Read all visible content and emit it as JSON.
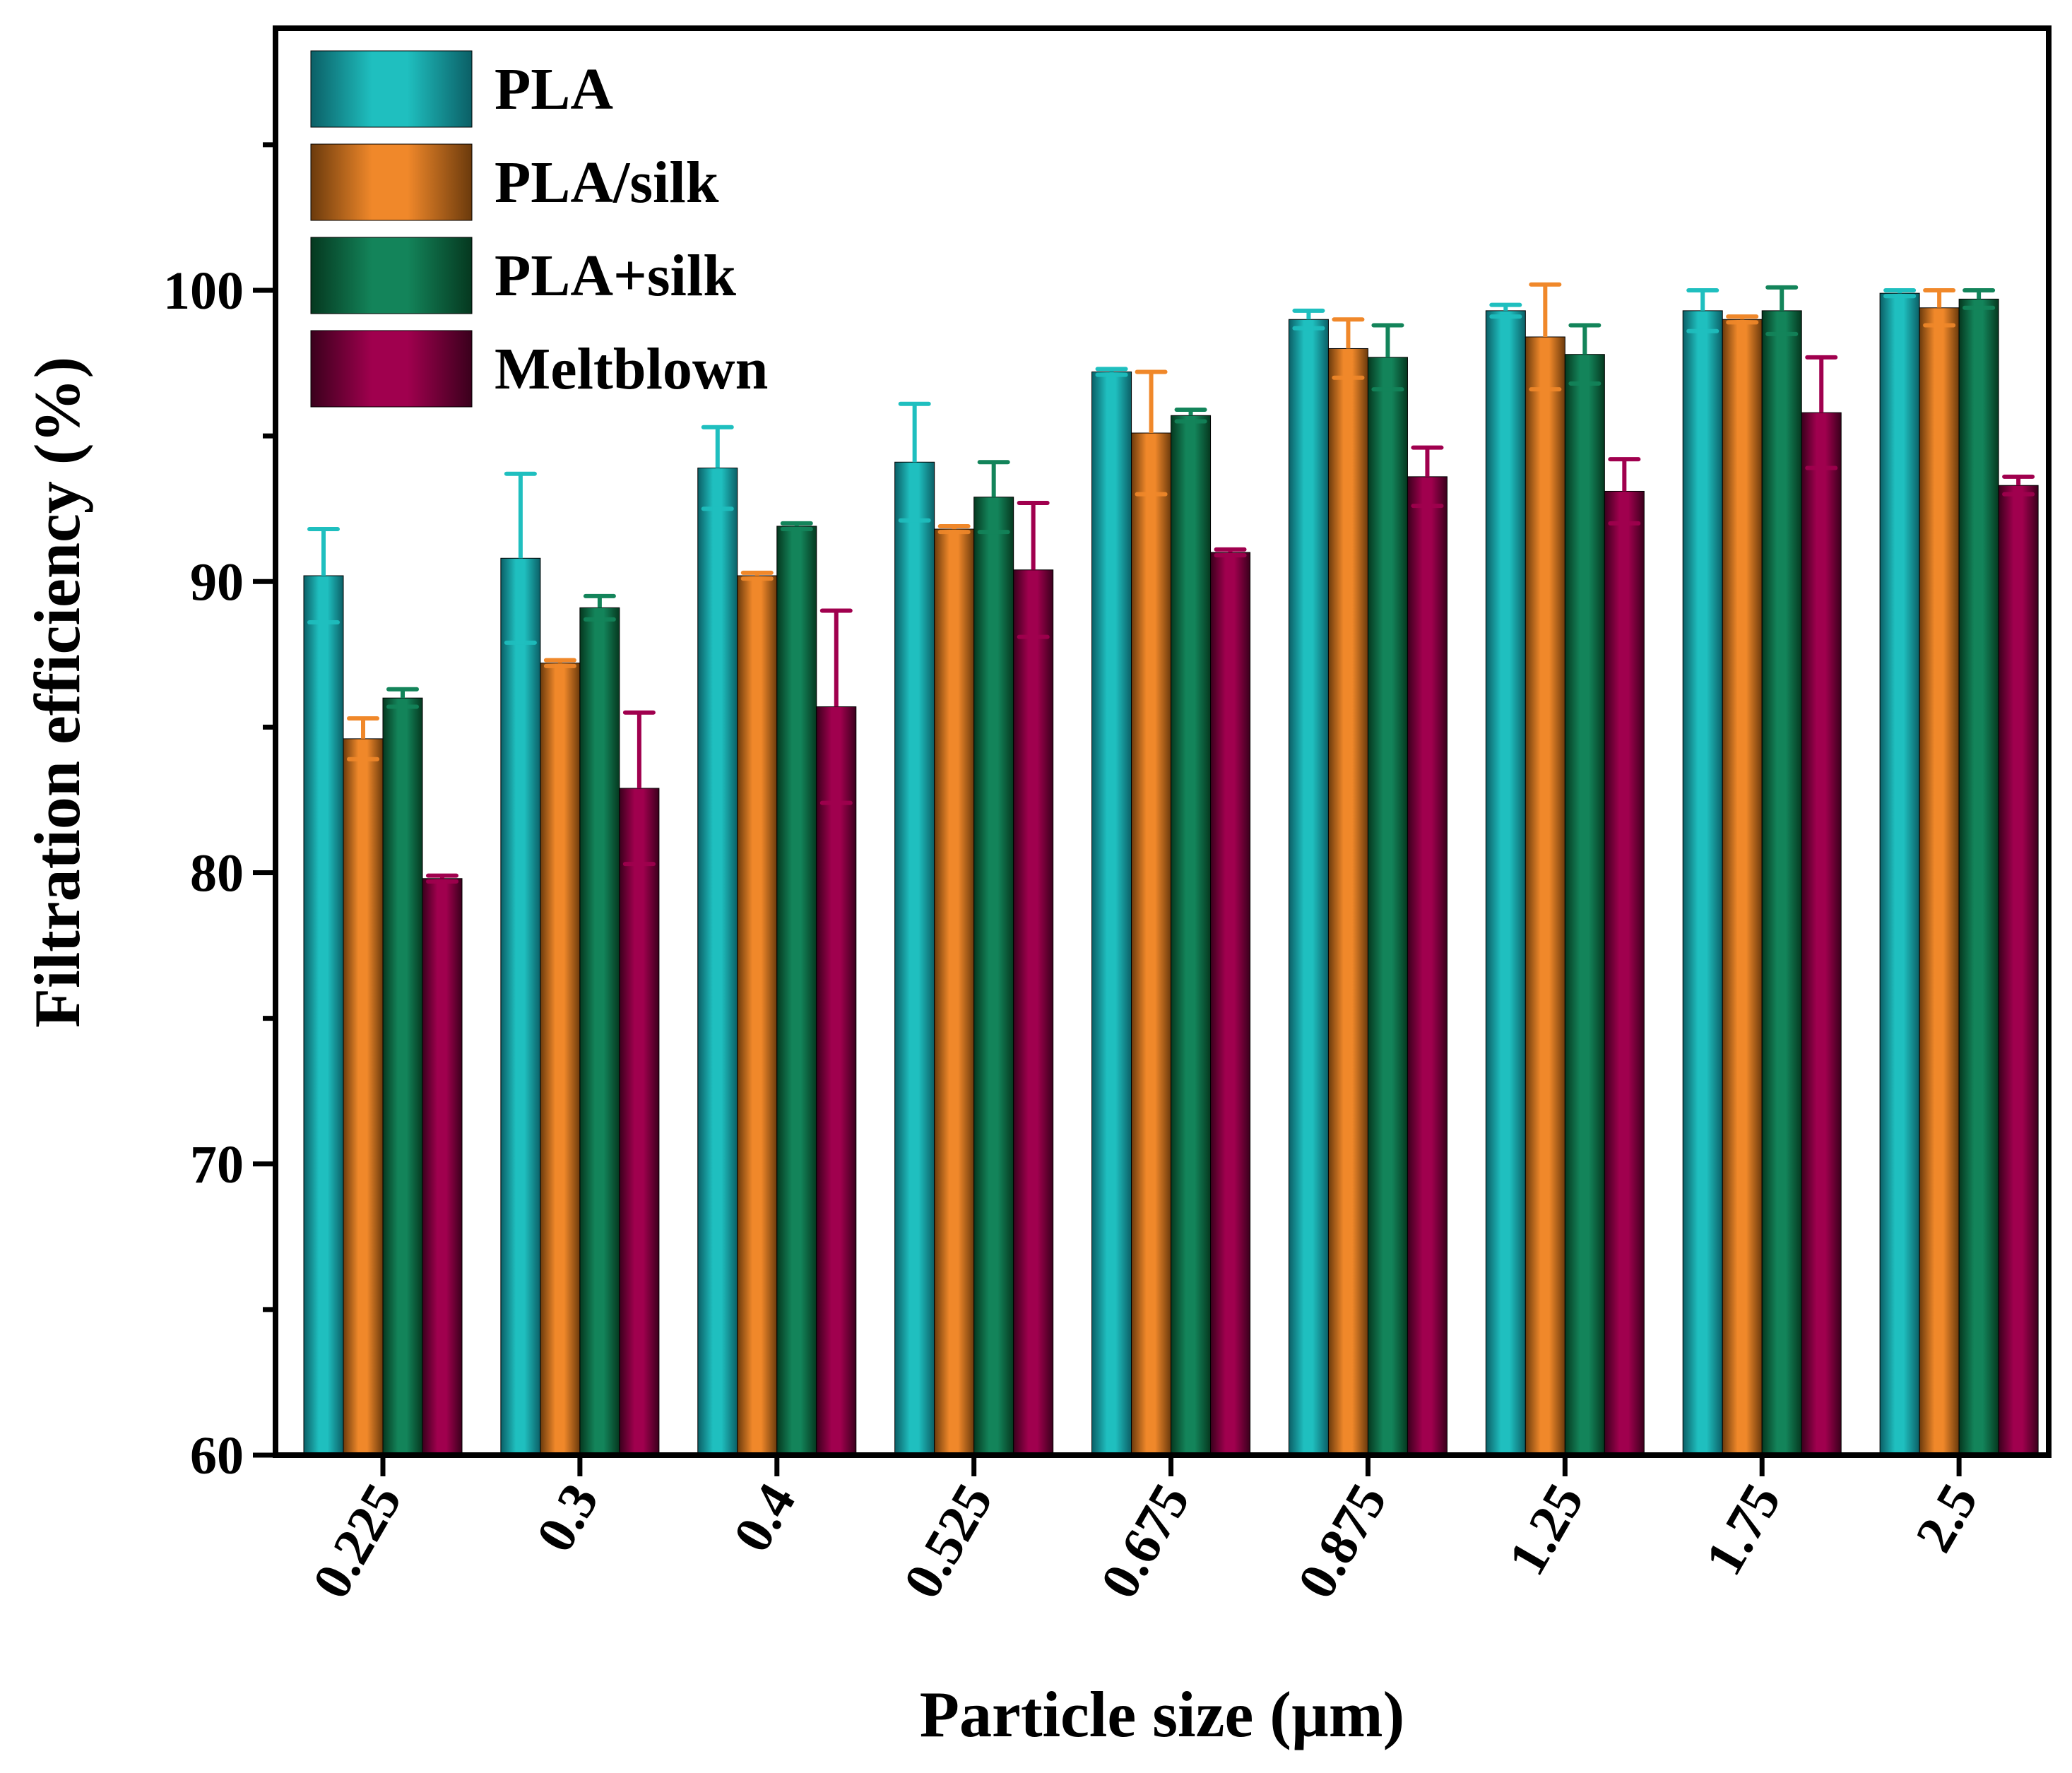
{
  "chart_data": {
    "type": "bar",
    "title": "",
    "xlabel": "Particle size (µm)",
    "ylabel": "Filtration efficiency (%)",
    "ylim": [
      60,
      109
    ],
    "yticks": [
      60,
      70,
      80,
      90,
      100
    ],
    "grid": false,
    "legend_position": "top-left",
    "categories": [
      "0.225",
      "0.3",
      "0.4",
      "0.525",
      "0.675",
      "0.875",
      "1.25",
      "1.75",
      "2.5"
    ],
    "series": [
      {
        "name": "PLA",
        "color": "#1fbfbf",
        "dark": "#0b5f66",
        "values": [
          90.2,
          90.8,
          93.9,
          94.1,
          97.2,
          99.0,
          99.3,
          99.3,
          99.9
        ],
        "errors": [
          1.6,
          2.9,
          1.4,
          2.0,
          0.1,
          0.3,
          0.2,
          0.7,
          0.1
        ]
      },
      {
        "name": "PLA/silk",
        "color": "#f0882a",
        "dark": "#6b3a0c",
        "values": [
          84.6,
          87.2,
          90.2,
          91.8,
          95.1,
          98.0,
          98.4,
          99.0,
          99.4
        ],
        "errors": [
          0.7,
          0.1,
          0.1,
          0.1,
          2.1,
          1.0,
          1.8,
          0.1,
          0.6
        ]
      },
      {
        "name": "PLA+silk",
        "color": "#13845a",
        "dark": "#05381f",
        "values": [
          86.0,
          89.1,
          91.9,
          92.9,
          95.7,
          97.7,
          97.8,
          99.3,
          99.7
        ],
        "errors": [
          0.3,
          0.4,
          0.1,
          1.2,
          0.2,
          1.1,
          1.0,
          0.8,
          0.3
        ]
      },
      {
        "name": "Meltblown",
        "color": "#a0004e",
        "dark": "#3a001c",
        "values": [
          79.8,
          82.9,
          85.7,
          90.4,
          91.0,
          93.6,
          93.1,
          95.8,
          93.3
        ],
        "errors": [
          0.1,
          2.6,
          3.3,
          2.3,
          0.1,
          1.0,
          1.1,
          1.9,
          0.3
        ]
      }
    ]
  }
}
